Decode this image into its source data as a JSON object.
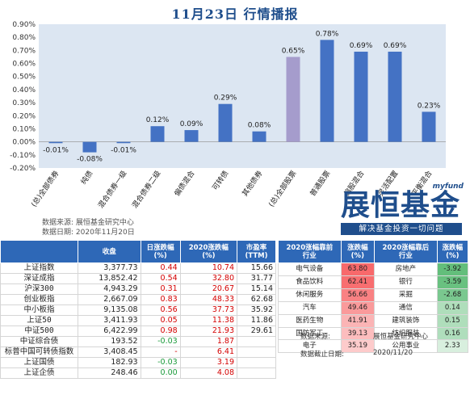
{
  "title": "11月23日 行情播报",
  "chart_data": {
    "type": "bar",
    "categories": [
      "(总)全部债券",
      "纯债",
      "混合债券一级",
      "混合债券二级",
      "偏债混合",
      "可转债",
      "其他债券",
      "(总)全部股票",
      "普通股票",
      "偏股混合",
      "灵活配置",
      "平衡混合"
    ],
    "values": [
      -0.01,
      -0.08,
      -0.01,
      0.12,
      0.09,
      0.29,
      0.08,
      0.65,
      0.78,
      0.69,
      0.69,
      0.23
    ],
    "data_labels": [
      "-0.01%",
      "-0.08%",
      "-0.01%",
      "0.12%",
      "0.09%",
      "0.29%",
      "0.08%",
      "0.65%",
      "0.78%",
      "0.69%",
      "0.69%",
      "0.23%"
    ],
    "highlight_index": 7,
    "yticks": [
      "0.90%",
      "0.80%",
      "0.70%",
      "0.60%",
      "0.50%",
      "0.40%",
      "0.30%",
      "0.20%",
      "0.10%",
      "0.00%",
      "-0.10%",
      "-0.20%"
    ],
    "ylim": [
      -0.2,
      0.9
    ],
    "colors": {
      "bar": "#4472c4",
      "highlight": "#a59ccc",
      "plot_bg": "#dce6f2"
    }
  },
  "source": {
    "line1": "数据来源: 展恒基金研究中心",
    "line2": "数据日期: 2020年11月20日"
  },
  "logo": {
    "small": "myfund",
    "main": "展恒基金",
    "slogan": "解决基金投资一切问题"
  },
  "index_table": {
    "headers": [
      "",
      "收盘",
      "日涨跌幅\n(%)",
      "2020涨跌幅\n(%)",
      "市盈率\n(TTM)"
    ],
    "rows": [
      {
        "name": "上证指数",
        "close": "3,377.73",
        "day": "0.44",
        "ytd": "10.74",
        "pe": "15.66",
        "dcls": "red",
        "ycls": "red"
      },
      {
        "name": "深证成指",
        "close": "13,852.42",
        "day": "0.54",
        "ytd": "32.80",
        "pe": "31.77",
        "dcls": "red",
        "ycls": "red"
      },
      {
        "name": "沪深300",
        "close": "4,943.29",
        "day": "0.31",
        "ytd": "20.67",
        "pe": "15.14",
        "dcls": "red",
        "ycls": "red"
      },
      {
        "name": "创业板指",
        "close": "2,667.09",
        "day": "0.83",
        "ytd": "48.33",
        "pe": "62.68",
        "dcls": "red",
        "ycls": "red"
      },
      {
        "name": "中小板指",
        "close": "9,135.08",
        "day": "0.56",
        "ytd": "37.73",
        "pe": "35.92",
        "dcls": "red",
        "ycls": "red"
      },
      {
        "name": "上证50",
        "close": "3,411.93",
        "day": "0.05",
        "ytd": "11.38",
        "pe": "11.86",
        "dcls": "red",
        "ycls": "red"
      },
      {
        "name": "中证500",
        "close": "6,422.99",
        "day": "0.98",
        "ytd": "21.93",
        "pe": "29.61",
        "dcls": "red",
        "ycls": "red"
      },
      {
        "name": "中证综合债",
        "close": "193.52",
        "day": "-0.03",
        "ytd": "1.87",
        "pe": "",
        "dcls": "green",
        "ycls": "red"
      },
      {
        "name": "标普中国可转债指数",
        "close": "3,408.45",
        "day": "-",
        "ytd": "6.41",
        "pe": "",
        "dcls": "red",
        "ycls": "red"
      },
      {
        "name": "上证国债",
        "close": "182.93",
        "day": "-0.03",
        "ytd": "3.19",
        "pe": "",
        "dcls": "green",
        "ycls": "red"
      },
      {
        "name": "上证企债",
        "close": "248.46",
        "day": "0.00",
        "ytd": "4.08",
        "pe": "",
        "dcls": "green",
        "ycls": "red"
      }
    ]
  },
  "industry_table": {
    "headers": [
      "2020涨幅靠前\n行业",
      "涨跌幅\n(%)",
      "2020涨幅靠后\n行业",
      "涨跌幅\n(%)"
    ],
    "rows": [
      {
        "top": "电气设备",
        "top_v": "63.80",
        "bot": "房地产",
        "bot_v": "-3.92"
      },
      {
        "top": "食品饮料",
        "top_v": "62.41",
        "bot": "银行",
        "bot_v": "-3.59"
      },
      {
        "top": "休闲服务",
        "top_v": "56.66",
        "bot": "采掘",
        "bot_v": "-2.68"
      },
      {
        "top": "汽车",
        "top_v": "49.46",
        "bot": "通信",
        "bot_v": "0.14"
      },
      {
        "top": "医药生物",
        "top_v": "41.91",
        "bot": "建筑装饰",
        "bot_v": "0.15"
      },
      {
        "top": "国防军工",
        "top_v": "39.13",
        "bot": "纺织服装",
        "bot_v": "0.16"
      },
      {
        "top": "电子",
        "top_v": "35.19",
        "bot": "公用事业",
        "bot_v": "2.33"
      }
    ],
    "top_levels": [
      63.8,
      62.41,
      56.66,
      49.46,
      41.91,
      39.13,
      35.19
    ],
    "bot_levels": [
      -3.92,
      -3.59,
      -2.68,
      0.14,
      0.15,
      0.16,
      2.33
    ],
    "colors": {
      "top_scale": "#f8696b",
      "bot_scale": "#63be7b"
    }
  },
  "notes": {
    "src_label": "数据来源:",
    "src_value": "展恒基金研究中心",
    "date_label": "数据截止日期:",
    "date_value": "2020/11/20"
  }
}
